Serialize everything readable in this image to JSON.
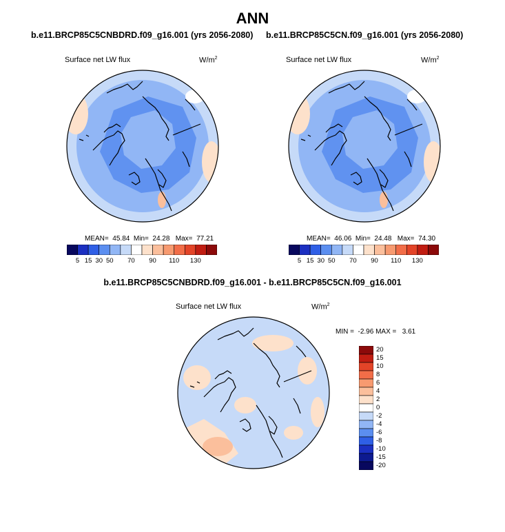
{
  "main_title": "ANN",
  "panels": [
    {
      "title": "b.e11.BRCP85C5CNBDRD.f09_g16.001 (yrs 2056-2080)",
      "variable": "Surface net LW flux",
      "units": "W/m",
      "units_sup": "2",
      "mean_label": "MEAN=",
      "mean": "45.84",
      "min_label": "Min=",
      "min": "24.28",
      "max_label": "Max=",
      "max": "77.21"
    },
    {
      "title": "b.e11.BRCP85C5CN.f09_g16.001 (yrs 2056-2080)",
      "variable": "Surface net LW flux",
      "units": "W/m",
      "units_sup": "2",
      "mean_label": "MEAN=",
      "mean": "46.06",
      "min_label": "Min=",
      "min": "24.48",
      "max_label": "Max=",
      "max": "74.30"
    },
    {
      "title": "b.e11.BRCP85C5CNBDRD.f09_g16.001 - b.e11.BRCP85C5CN.f09_g16.001",
      "variable": "Surface net LW flux",
      "units": "W/m",
      "units_sup": "2",
      "min_label": "MIN =",
      "min": "-2.96",
      "max_label": "MAX =",
      "max": "3.61"
    }
  ],
  "chart_data": [
    {
      "type": "heatmap",
      "projection": "north polar stereographic",
      "title": "b.e11.BRCP85C5CNBDRD.f09_g16.001 (yrs 2056-2080)",
      "variable": "Surface net LW flux",
      "units": "W/m2",
      "mean": 45.84,
      "min": 24.28,
      "max": 77.21,
      "colorbar": {
        "orientation": "horizontal",
        "levels": [
          5,
          15,
          30,
          50,
          70,
          90,
          110,
          130
        ],
        "tick_labels": [
          "5",
          "15",
          "30",
          "50",
          "70",
          "90",
          "110",
          "130"
        ],
        "colors": [
          "#08085e",
          "#1b2fc1",
          "#2f5fe6",
          "#5b8ef0",
          "#91b6f5",
          "#c6daf8",
          "#ffffff",
          "#fde1cb",
          "#fbbf9c",
          "#f79a70",
          "#f26d48",
          "#e34428",
          "#c11d12",
          "#8c0a0a"
        ]
      }
    },
    {
      "type": "heatmap",
      "projection": "north polar stereographic",
      "title": "b.e11.BRCP85C5CN.f09_g16.001 (yrs 2056-2080)",
      "variable": "Surface net LW flux",
      "units": "W/m2",
      "mean": 46.06,
      "min": 24.48,
      "max": 74.3,
      "colorbar": {
        "orientation": "horizontal",
        "levels": [
          5,
          15,
          30,
          50,
          70,
          90,
          110,
          130
        ],
        "tick_labels": [
          "5",
          "15",
          "30",
          "50",
          "70",
          "90",
          "110",
          "130"
        ],
        "colors": [
          "#08085e",
          "#1b2fc1",
          "#2f5fe6",
          "#5b8ef0",
          "#91b6f5",
          "#c6daf8",
          "#ffffff",
          "#fde1cb",
          "#fbbf9c",
          "#f79a70",
          "#f26d48",
          "#e34428",
          "#c11d12",
          "#8c0a0a"
        ]
      }
    },
    {
      "type": "heatmap",
      "projection": "north polar stereographic",
      "title": "b.e11.BRCP85C5CNBDRD.f09_g16.001 - b.e11.BRCP85C5CN.f09_g16.001",
      "variable": "Surface net LW flux",
      "units": "W/m2",
      "min": -2.96,
      "max": 3.61,
      "colorbar": {
        "orientation": "vertical",
        "levels": [
          20,
          15,
          10,
          8,
          6,
          4,
          2,
          0,
          -2,
          -4,
          -6,
          -8,
          -10,
          -15,
          -20
        ],
        "tick_labels": [
          "20",
          "15",
          "10",
          "8",
          "6",
          "4",
          "2",
          "0",
          "-2",
          "-4",
          "-6",
          "-8",
          "-10",
          "-15",
          "-20"
        ],
        "colors": [
          "#8c0a0a",
          "#c11d12",
          "#e34428",
          "#f26d48",
          "#f79a70",
          "#fbbf9c",
          "#fde1cb",
          "#ffffff",
          "#c6daf8",
          "#91b6f5",
          "#5b8ef0",
          "#2f5fe6",
          "#1b2fc1",
          "#0d1a90",
          "#08085e"
        ]
      }
    }
  ]
}
